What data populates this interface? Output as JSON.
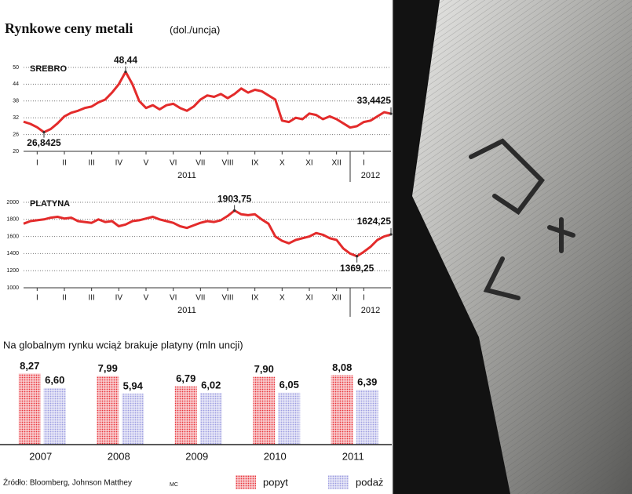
{
  "title": "Rynkowe ceny metali",
  "subtitle": "(dol./uncja)",
  "chart_data": [
    {
      "type": "line",
      "x": [
        0,
        0.25,
        0.5,
        0.75,
        1,
        1.25,
        1.5,
        1.75,
        2,
        2.25,
        2.5,
        2.75,
        3,
        3.25,
        3.5,
        3.75,
        4,
        4.25,
        4.5,
        4.75,
        5,
        5.25,
        5.5,
        5.75,
        6,
        6.25,
        6.5,
        6.75,
        7,
        7.25,
        7.5,
        7.75,
        8,
        8.25,
        8.5,
        8.75,
        9,
        9.25,
        9.5,
        9.75,
        10,
        10.25,
        10.5,
        10.75,
        11,
        11.25,
        11.5,
        11.75,
        12,
        12.25,
        12.5,
        12.75,
        13,
        13.25,
        13.5
      ],
      "series": [
        {
          "name": "SREBRO",
          "color": "#e32b2b",
          "values": [
            30.6,
            29.8,
            28.6,
            26.8425,
            28,
            30,
            32.5,
            33.8,
            34.5,
            35.5,
            36,
            37.5,
            38.5,
            41,
            44,
            48.44,
            44,
            38,
            35.5,
            36.5,
            35,
            36.5,
            37,
            35.5,
            34.5,
            36,
            38.5,
            40,
            39.5,
            40.5,
            39,
            40.5,
            42.5,
            41,
            42,
            41.5,
            40,
            38.5,
            31,
            30.5,
            32,
            31.5,
            33.5,
            33,
            31.5,
            32.5,
            31.5,
            30,
            28.5,
            29,
            30.5,
            31,
            32.5,
            34,
            33.4425
          ]
        }
      ],
      "xlim": [
        0,
        13.5
      ],
      "ylim": [
        20,
        50
      ],
      "yticks": [
        20,
        26,
        32,
        38,
        44,
        50
      ],
      "grid": true,
      "xticks": [
        {
          "value": 0.5,
          "label": "I"
        },
        {
          "value": 1.5,
          "label": "II"
        },
        {
          "value": 2.5,
          "label": "III"
        },
        {
          "value": 3.5,
          "label": "IV"
        },
        {
          "value": 4.5,
          "label": "V"
        },
        {
          "value": 5.5,
          "label": "VI"
        },
        {
          "value": 6.5,
          "label": "VII"
        },
        {
          "value": 7.5,
          "label": "VIII"
        },
        {
          "value": 8.5,
          "label": "IX"
        },
        {
          "value": 9.5,
          "label": "X"
        },
        {
          "value": 10.5,
          "label": "XI"
        },
        {
          "value": 11.5,
          "label": "XII"
        },
        {
          "value": 12.5,
          "label": "I"
        }
      ],
      "x_groups": [
        "2011",
        "2012"
      ],
      "annotations": [
        {
          "text": "26,8425",
          "x": 0.75,
          "y": 26.8425
        },
        {
          "text": "48,44",
          "x": 3.75,
          "y": 48.44
        },
        {
          "text": "33,4425",
          "x": 13.5,
          "y": 33.4425
        }
      ]
    },
    {
      "type": "line",
      "x": [
        0,
        0.25,
        0.5,
        0.75,
        1,
        1.25,
        1.5,
        1.75,
        2,
        2.25,
        2.5,
        2.75,
        3,
        3.25,
        3.5,
        3.75,
        4,
        4.25,
        4.5,
        4.75,
        5,
        5.25,
        5.5,
        5.75,
        6,
        6.25,
        6.5,
        6.75,
        7,
        7.25,
        7.5,
        7.75,
        8,
        8.25,
        8.5,
        8.75,
        9,
        9.25,
        9.5,
        9.75,
        10,
        10.25,
        10.5,
        10.75,
        11,
        11.25,
        11.5,
        11.75,
        12,
        12.25,
        12.5,
        12.75,
        13,
        13.25,
        13.5
      ],
      "series": [
        {
          "name": "PLATYNA",
          "color": "#e32b2b",
          "values": [
            1750,
            1780,
            1790,
            1800,
            1820,
            1830,
            1810,
            1820,
            1780,
            1770,
            1760,
            1800,
            1770,
            1780,
            1720,
            1740,
            1780,
            1790,
            1810,
            1830,
            1800,
            1780,
            1760,
            1720,
            1700,
            1730,
            1760,
            1780,
            1770,
            1790,
            1840,
            1903.75,
            1860,
            1850,
            1860,
            1800,
            1750,
            1600,
            1550,
            1520,
            1560,
            1580,
            1600,
            1640,
            1620,
            1580,
            1560,
            1460,
            1400,
            1369.25,
            1420,
            1480,
            1560,
            1600,
            1624.25
          ]
        }
      ],
      "xlim": [
        0,
        13.5
      ],
      "ylim": [
        1000,
        2000
      ],
      "yticks": [
        1000,
        1200,
        1400,
        1600,
        1800,
        2000
      ],
      "grid": true,
      "xticks": [
        {
          "value": 0.5,
          "label": "I"
        },
        {
          "value": 1.5,
          "label": "II"
        },
        {
          "value": 2.5,
          "label": "III"
        },
        {
          "value": 3.5,
          "label": "IV"
        },
        {
          "value": 4.5,
          "label": "V"
        },
        {
          "value": 5.5,
          "label": "VI"
        },
        {
          "value": 6.5,
          "label": "VII"
        },
        {
          "value": 7.5,
          "label": "VIII"
        },
        {
          "value": 8.5,
          "label": "IX"
        },
        {
          "value": 9.5,
          "label": "X"
        },
        {
          "value": 10.5,
          "label": "XI"
        },
        {
          "value": 11.5,
          "label": "XII"
        },
        {
          "value": 12.5,
          "label": "I"
        }
      ],
      "x_groups": [
        "2011",
        "2012"
      ],
      "annotations": [
        {
          "text": "1903,75",
          "x": 7.75,
          "y": 1903.75
        },
        {
          "text": "1369,25",
          "x": 12.25,
          "y": 1369.25
        },
        {
          "text": "1624,25",
          "x": 13.5,
          "y": 1624.25
        }
      ]
    },
    {
      "type": "bar",
      "title": "Na globalnym rynku wciąż brakuje platyny (mln uncji)",
      "categories": [
        "2007",
        "2008",
        "2009",
        "2010",
        "2011"
      ],
      "ylim": [
        0,
        10.5
      ],
      "series": [
        {
          "name": "popyt",
          "color": "#e8333a",
          "values": [
            8.27,
            7.99,
            6.79,
            7.9,
            8.08
          ],
          "value_labels": [
            "8,27",
            "7,99",
            "6,79",
            "7,90",
            "8,08"
          ]
        },
        {
          "name": "podaż",
          "color": "#9c9ce0",
          "values": [
            6.6,
            5.94,
            6.02,
            6.05,
            6.39
          ],
          "value_labels": [
            "6,60",
            "5,94",
            "6,02",
            "6,05",
            "6,39"
          ]
        }
      ]
    }
  ],
  "source": "Źródło: Bloomberg, Johnson Matthey",
  "credit": "MC"
}
